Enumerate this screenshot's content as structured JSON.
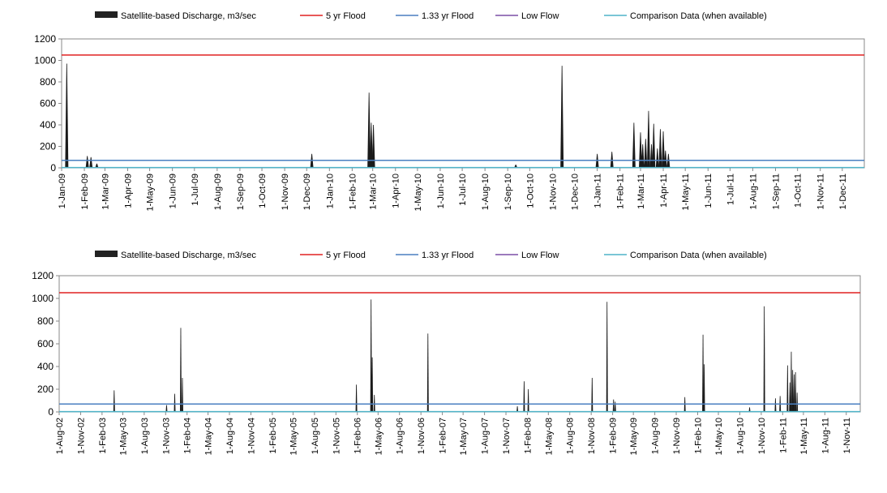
{
  "chart_data": [
    {
      "id": "top",
      "type": "area",
      "legend": {
        "placement": "top",
        "items": [
          {
            "label": "Satellite-based Discharge, m3/sec",
            "kind": "area",
            "color": "#222222"
          },
          {
            "label": "5 yr Flood",
            "kind": "line",
            "color": "#e02020"
          },
          {
            "label": "1.33 yr Flood",
            "kind": "line",
            "color": "#4a7fc1"
          },
          {
            "label": "Low Flow",
            "kind": "line",
            "color": "#7b4fa5"
          },
          {
            "label": "Comparison Data (when available)",
            "kind": "line",
            "color": "#4fb3c8"
          }
        ]
      },
      "ylim": [
        0,
        1200
      ],
      "yticks": [
        "0",
        "200",
        "400",
        "600",
        "800",
        "1000",
        "1200"
      ],
      "x_start": "2009-01-01",
      "x_end": "2011-12-31",
      "xtick_labels": [
        "1-Jan-09",
        "1-Feb-09",
        "1-Mar-09",
        "1-Apr-09",
        "1-May-09",
        "1-Jun-09",
        "1-Jul-09",
        "1-Aug-09",
        "1-Sep-09",
        "1-Oct-09",
        "1-Nov-09",
        "1-Dec-09",
        "1-Jan-10",
        "1-Feb-10",
        "1-Mar-10",
        "1-Apr-10",
        "1-May-10",
        "1-Jun-10",
        "1-Jul-10",
        "1-Aug-10",
        "1-Sep-10",
        "1-Oct-10",
        "1-Nov-10",
        "1-Dec-10",
        "1-Jan-11",
        "1-Feb-11",
        "1-Mar-11",
        "1-Apr-11",
        "1-May-11",
        "1-Jun-11",
        "1-Jul-11",
        "1-Aug-11",
        "1-Sep-11",
        "1-Oct-11",
        "1-Nov-11",
        "1-Dec-11"
      ],
      "thresholds": {
        "flood_5yr": 1050,
        "flood_1_33yr": 70,
        "low_flow": 3
      },
      "peaks": [
        {
          "date": "2009-01-08",
          "value": 970
        },
        {
          "date": "2009-02-05",
          "value": 110
        },
        {
          "date": "2009-02-10",
          "value": 100
        },
        {
          "date": "2009-02-18",
          "value": 40
        },
        {
          "date": "2009-12-08",
          "value": 130
        },
        {
          "date": "2010-02-24",
          "value": 700
        },
        {
          "date": "2010-02-27",
          "value": 420
        },
        {
          "date": "2010-03-02",
          "value": 400
        },
        {
          "date": "2010-09-12",
          "value": 30
        },
        {
          "date": "2010-11-14",
          "value": 950
        },
        {
          "date": "2011-01-01",
          "value": 130
        },
        {
          "date": "2011-01-21",
          "value": 150
        },
        {
          "date": "2011-02-20",
          "value": 420
        },
        {
          "date": "2011-03-01",
          "value": 330
        },
        {
          "date": "2011-03-04",
          "value": 220
        },
        {
          "date": "2011-03-08",
          "value": 270
        },
        {
          "date": "2011-03-12",
          "value": 530
        },
        {
          "date": "2011-03-16",
          "value": 220
        },
        {
          "date": "2011-03-19",
          "value": 410
        },
        {
          "date": "2011-03-24",
          "value": 180
        },
        {
          "date": "2011-03-28",
          "value": 360
        },
        {
          "date": "2011-04-01",
          "value": 340
        },
        {
          "date": "2011-04-04",
          "value": 160
        },
        {
          "date": "2011-04-08",
          "value": 130
        }
      ]
    },
    {
      "id": "bottom",
      "type": "area",
      "legend": {
        "placement": "top",
        "items": [
          {
            "label": "Satellite-based Discharge, m3/sec",
            "kind": "area",
            "color": "#222222"
          },
          {
            "label": "5 yr Flood",
            "kind": "line",
            "color": "#e02020"
          },
          {
            "label": "1.33 yr Flood",
            "kind": "line",
            "color": "#4a7fc1"
          },
          {
            "label": "Low Flow",
            "kind": "line",
            "color": "#7b4fa5"
          },
          {
            "label": "Comparison Data (when available)",
            "kind": "line",
            "color": "#4fb3c8"
          }
        ]
      },
      "ylim": [
        0,
        1200
      ],
      "yticks": [
        "0",
        "200",
        "400",
        "600",
        "800",
        "1000",
        "1200"
      ],
      "x_start": "2002-08-01",
      "x_end": "2011-12-31",
      "xtick_labels": [
        "1-Aug-02",
        "1-Nov-02",
        "1-Feb-03",
        "1-May-03",
        "1-Aug-03",
        "1-Nov-03",
        "1-Feb-04",
        "1-May-04",
        "1-Aug-04",
        "1-Nov-04",
        "1-Feb-05",
        "1-May-05",
        "1-Aug-05",
        "1-Nov-05",
        "1-Feb-06",
        "1-May-06",
        "1-Aug-06",
        "1-Nov-06",
        "1-Feb-07",
        "1-May-07",
        "1-Aug-07",
        "1-Nov-07",
        "1-Feb-08",
        "1-May-08",
        "1-Aug-08",
        "1-Nov-08",
        "1-Feb-09",
        "1-May-09",
        "1-Aug-09",
        "1-Nov-09",
        "1-Feb-10",
        "1-May-10",
        "1-Aug-10",
        "1-Nov-10",
        "1-Feb-11",
        "1-May-11",
        "1-Aug-11",
        "1-Nov-11"
      ],
      "thresholds": {
        "flood_5yr": 1050,
        "flood_1_33yr": 70,
        "low_flow": 3
      },
      "peaks": [
        {
          "date": "2003-03-25",
          "value": 190
        },
        {
          "date": "2003-11-05",
          "value": 60
        },
        {
          "date": "2003-12-10",
          "value": 160
        },
        {
          "date": "2004-01-05",
          "value": 740
        },
        {
          "date": "2004-01-12",
          "value": 300
        },
        {
          "date": "2006-01-28",
          "value": 240
        },
        {
          "date": "2006-04-01",
          "value": 990
        },
        {
          "date": "2006-04-06",
          "value": 480
        },
        {
          "date": "2006-04-15",
          "value": 150
        },
        {
          "date": "2006-12-01",
          "value": 690
        },
        {
          "date": "2007-12-20",
          "value": 50
        },
        {
          "date": "2008-01-18",
          "value": 270
        },
        {
          "date": "2008-02-05",
          "value": 200
        },
        {
          "date": "2008-11-05",
          "value": 300
        },
        {
          "date": "2009-01-08",
          "value": 970
        },
        {
          "date": "2009-02-05",
          "value": 110
        },
        {
          "date": "2009-02-12",
          "value": 90
        },
        {
          "date": "2009-12-08",
          "value": 130
        },
        {
          "date": "2010-02-24",
          "value": 680
        },
        {
          "date": "2010-03-01",
          "value": 420
        },
        {
          "date": "2010-09-12",
          "value": 40
        },
        {
          "date": "2010-11-14",
          "value": 930
        },
        {
          "date": "2011-01-01",
          "value": 120
        },
        {
          "date": "2011-01-21",
          "value": 140
        },
        {
          "date": "2011-02-22",
          "value": 410
        },
        {
          "date": "2011-03-04",
          "value": 260
        },
        {
          "date": "2011-03-10",
          "value": 530
        },
        {
          "date": "2011-03-16",
          "value": 370
        },
        {
          "date": "2011-03-22",
          "value": 330
        },
        {
          "date": "2011-03-28",
          "value": 350
        },
        {
          "date": "2011-04-04",
          "value": 170
        }
      ]
    }
  ]
}
